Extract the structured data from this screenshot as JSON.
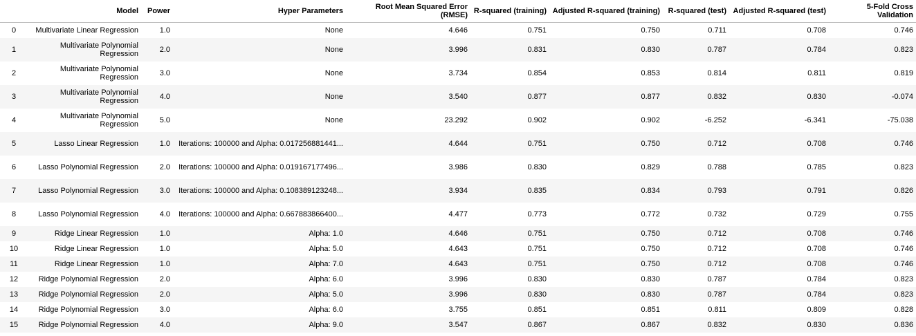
{
  "table": {
    "headers": [
      "",
      "Model",
      "Power",
      "Hyper Parameters",
      "Root Mean Squared Error (RMSE)",
      "R-squared (training)",
      "Adjusted R-squared (training)",
      "R-squared (test)",
      "Adjusted R-squared (test)",
      "5-Fold Cross Validation"
    ],
    "rows": [
      [
        "0",
        "Multivariate Linear Regression",
        "1.0",
        "None",
        "4.646",
        "0.751",
        "0.750",
        "0.711",
        "0.708",
        "0.746"
      ],
      [
        "1",
        "Multivariate Polynomial Regression",
        "2.0",
        "None",
        "3.996",
        "0.831",
        "0.830",
        "0.787",
        "0.784",
        "0.823"
      ],
      [
        "2",
        "Multivariate Polynomial Regression",
        "3.0",
        "None",
        "3.734",
        "0.854",
        "0.853",
        "0.814",
        "0.811",
        "0.819"
      ],
      [
        "3",
        "Multivariate Polynomial Regression",
        "4.0",
        "None",
        "3.540",
        "0.877",
        "0.877",
        "0.832",
        "0.830",
        "-0.074"
      ],
      [
        "4",
        "Multivariate Polynomial Regression",
        "5.0",
        "None",
        "23.292",
        "0.902",
        "0.902",
        "-6.252",
        "-6.341",
        "-75.038"
      ],
      [
        "5",
        "Lasso Linear Regression",
        "1.0",
        "Iterations: 100000 and Alpha: 0.017256881441...",
        "4.644",
        "0.751",
        "0.750",
        "0.712",
        "0.708",
        "0.746"
      ],
      [
        "6",
        "Lasso Polynomial Regression",
        "2.0",
        "Iterations: 100000 and Alpha: 0.019167177496...",
        "3.986",
        "0.830",
        "0.829",
        "0.788",
        "0.785",
        "0.823"
      ],
      [
        "7",
        "Lasso Polynomial Regression",
        "3.0",
        "Iterations: 100000 and Alpha: 0.108389123248...",
        "3.934",
        "0.835",
        "0.834",
        "0.793",
        "0.791",
        "0.826"
      ],
      [
        "8",
        "Lasso Polynomial Regression",
        "4.0",
        "Iterations: 100000 and Alpha: 0.667883866400...",
        "4.477",
        "0.773",
        "0.772",
        "0.732",
        "0.729",
        "0.755"
      ],
      [
        "9",
        "Ridge Linear Regression",
        "1.0",
        "Alpha: 1.0",
        "4.646",
        "0.751",
        "0.750",
        "0.712",
        "0.708",
        "0.746"
      ],
      [
        "10",
        "Ridge Linear Regression",
        "1.0",
        "Alpha: 5.0",
        "4.643",
        "0.751",
        "0.750",
        "0.712",
        "0.708",
        "0.746"
      ],
      [
        "11",
        "Ridge Linear Regression",
        "1.0",
        "Alpha: 7.0",
        "4.643",
        "0.751",
        "0.750",
        "0.712",
        "0.708",
        "0.746"
      ],
      [
        "12",
        "Ridge Polynomial Regression",
        "2.0",
        "Alpha: 6.0",
        "3.996",
        "0.830",
        "0.830",
        "0.787",
        "0.784",
        "0.823"
      ],
      [
        "13",
        "Ridge Polynomial Regression",
        "2.0",
        "Alpha: 5.0",
        "3.996",
        "0.830",
        "0.830",
        "0.787",
        "0.784",
        "0.823"
      ],
      [
        "14",
        "Ridge Polynomial Regression",
        "3.0",
        "Alpha: 6.0",
        "3.755",
        "0.851",
        "0.851",
        "0.811",
        "0.809",
        "0.828"
      ],
      [
        "15",
        "Ridge Polynomial Regression",
        "4.0",
        "Alpha: 9.0",
        "3.547",
        "0.867",
        "0.867",
        "0.832",
        "0.830",
        "0.836"
      ]
    ]
  }
}
